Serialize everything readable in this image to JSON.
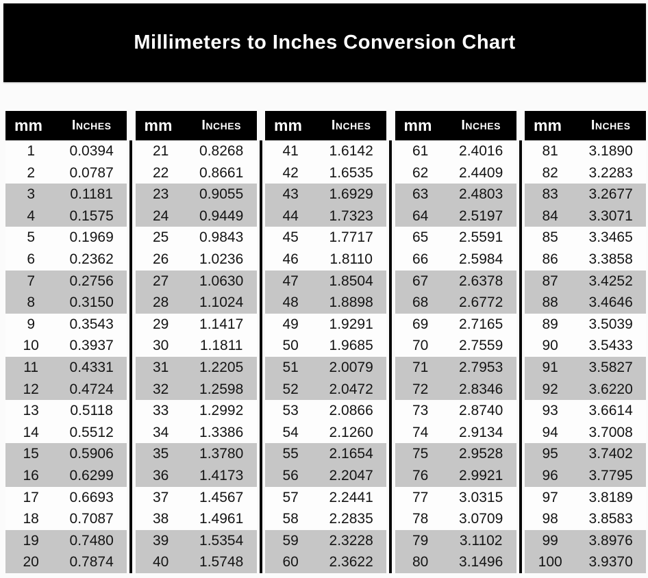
{
  "title": "Millimeters to Inches Conversion Chart",
  "table_header": {
    "mm_label": "mm",
    "inches_label": "Inches"
  },
  "colors": {
    "banner_bg": "#000000",
    "header_bg": "#000000",
    "header_text": "#ffffff",
    "row_shade": "#c6c6c6",
    "value_text": "#141414"
  },
  "chart_data": {
    "type": "table",
    "title": "Millimeters to Inches Conversion Chart",
    "columns_per_group": [
      "mm",
      "Inches"
    ],
    "mm_range": [
      1,
      100
    ],
    "shading": "rows in pairs, alternating white and gray starting with white",
    "groups": [
      {
        "rows": [
          {
            "mm": 1,
            "inches": "0.0394"
          },
          {
            "mm": 2,
            "inches": "0.0787"
          },
          {
            "mm": 3,
            "inches": "0.1181"
          },
          {
            "mm": 4,
            "inches": "0.1575"
          },
          {
            "mm": 5,
            "inches": "0.1969"
          },
          {
            "mm": 6,
            "inches": "0.2362"
          },
          {
            "mm": 7,
            "inches": "0.2756"
          },
          {
            "mm": 8,
            "inches": "0.3150"
          },
          {
            "mm": 9,
            "inches": "0.3543"
          },
          {
            "mm": 10,
            "inches": "0.3937"
          },
          {
            "mm": 11,
            "inches": "0.4331"
          },
          {
            "mm": 12,
            "inches": "0.4724"
          },
          {
            "mm": 13,
            "inches": "0.5118"
          },
          {
            "mm": 14,
            "inches": "0.5512"
          },
          {
            "mm": 15,
            "inches": "0.5906"
          },
          {
            "mm": 16,
            "inches": "0.6299"
          },
          {
            "mm": 17,
            "inches": "0.6693"
          },
          {
            "mm": 18,
            "inches": "0.7087"
          },
          {
            "mm": 19,
            "inches": "0.7480"
          },
          {
            "mm": 20,
            "inches": "0.7874"
          }
        ]
      },
      {
        "rows": [
          {
            "mm": 21,
            "inches": "0.8268"
          },
          {
            "mm": 22,
            "inches": "0.8661"
          },
          {
            "mm": 23,
            "inches": "0.9055"
          },
          {
            "mm": 24,
            "inches": "0.9449"
          },
          {
            "mm": 25,
            "inches": "0.9843"
          },
          {
            "mm": 26,
            "inches": "1.0236"
          },
          {
            "mm": 27,
            "inches": "1.0630"
          },
          {
            "mm": 28,
            "inches": "1.1024"
          },
          {
            "mm": 29,
            "inches": "1.1417"
          },
          {
            "mm": 30,
            "inches": "1.1811"
          },
          {
            "mm": 31,
            "inches": "1.2205"
          },
          {
            "mm": 32,
            "inches": "1.2598"
          },
          {
            "mm": 33,
            "inches": "1.2992"
          },
          {
            "mm": 34,
            "inches": "1.3386"
          },
          {
            "mm": 35,
            "inches": "1.3780"
          },
          {
            "mm": 36,
            "inches": "1.4173"
          },
          {
            "mm": 37,
            "inches": "1.4567"
          },
          {
            "mm": 38,
            "inches": "1.4961"
          },
          {
            "mm": 39,
            "inches": "1.5354"
          },
          {
            "mm": 40,
            "inches": "1.5748"
          }
        ]
      },
      {
        "rows": [
          {
            "mm": 41,
            "inches": "1.6142"
          },
          {
            "mm": 42,
            "inches": "1.6535"
          },
          {
            "mm": 43,
            "inches": "1.6929"
          },
          {
            "mm": 44,
            "inches": "1.7323"
          },
          {
            "mm": 45,
            "inches": "1.7717"
          },
          {
            "mm": 46,
            "inches": "1.8110"
          },
          {
            "mm": 47,
            "inches": "1.8504"
          },
          {
            "mm": 48,
            "inches": "1.8898"
          },
          {
            "mm": 49,
            "inches": "1.9291"
          },
          {
            "mm": 50,
            "inches": "1.9685"
          },
          {
            "mm": 51,
            "inches": "2.0079"
          },
          {
            "mm": 52,
            "inches": "2.0472"
          },
          {
            "mm": 53,
            "inches": "2.0866"
          },
          {
            "mm": 54,
            "inches": "2.1260"
          },
          {
            "mm": 55,
            "inches": "2.1654"
          },
          {
            "mm": 56,
            "inches": "2.2047"
          },
          {
            "mm": 57,
            "inches": "2.2441"
          },
          {
            "mm": 58,
            "inches": "2.2835"
          },
          {
            "mm": 59,
            "inches": "2.3228"
          },
          {
            "mm": 60,
            "inches": "2.3622"
          }
        ]
      },
      {
        "rows": [
          {
            "mm": 61,
            "inches": "2.4016"
          },
          {
            "mm": 62,
            "inches": "2.4409"
          },
          {
            "mm": 63,
            "inches": "2.4803"
          },
          {
            "mm": 64,
            "inches": "2.5197"
          },
          {
            "mm": 65,
            "inches": "2.5591"
          },
          {
            "mm": 66,
            "inches": "2.5984"
          },
          {
            "mm": 67,
            "inches": "2.6378"
          },
          {
            "mm": 68,
            "inches": "2.6772"
          },
          {
            "mm": 69,
            "inches": "2.7165"
          },
          {
            "mm": 70,
            "inches": "2.7559"
          },
          {
            "mm": 71,
            "inches": "2.7953"
          },
          {
            "mm": 72,
            "inches": "2.8346"
          },
          {
            "mm": 73,
            "inches": "2.8740"
          },
          {
            "mm": 74,
            "inches": "2.9134"
          },
          {
            "mm": 75,
            "inches": "2.9528"
          },
          {
            "mm": 76,
            "inches": "2.9921"
          },
          {
            "mm": 77,
            "inches": "3.0315"
          },
          {
            "mm": 78,
            "inches": "3.0709"
          },
          {
            "mm": 79,
            "inches": "3.1102"
          },
          {
            "mm": 80,
            "inches": "3.1496"
          }
        ]
      },
      {
        "rows": [
          {
            "mm": 81,
            "inches": "3.1890"
          },
          {
            "mm": 82,
            "inches": "3.2283"
          },
          {
            "mm": 83,
            "inches": "3.2677"
          },
          {
            "mm": 84,
            "inches": "3.3071"
          },
          {
            "mm": 85,
            "inches": "3.3465"
          },
          {
            "mm": 86,
            "inches": "3.3858"
          },
          {
            "mm": 87,
            "inches": "3.4252"
          },
          {
            "mm": 88,
            "inches": "3.4646"
          },
          {
            "mm": 89,
            "inches": "3.5039"
          },
          {
            "mm": 90,
            "inches": "3.5433"
          },
          {
            "mm": 91,
            "inches": "3.5827"
          },
          {
            "mm": 92,
            "inches": "3.6220"
          },
          {
            "mm": 93,
            "inches": "3.6614"
          },
          {
            "mm": 94,
            "inches": "3.7008"
          },
          {
            "mm": 95,
            "inches": "3.7402"
          },
          {
            "mm": 96,
            "inches": "3.7795"
          },
          {
            "mm": 97,
            "inches": "3.8189"
          },
          {
            "mm": 98,
            "inches": "3.8583"
          },
          {
            "mm": 99,
            "inches": "3.8976"
          },
          {
            "mm": 100,
            "inches": "3.9370"
          }
        ]
      }
    ]
  }
}
